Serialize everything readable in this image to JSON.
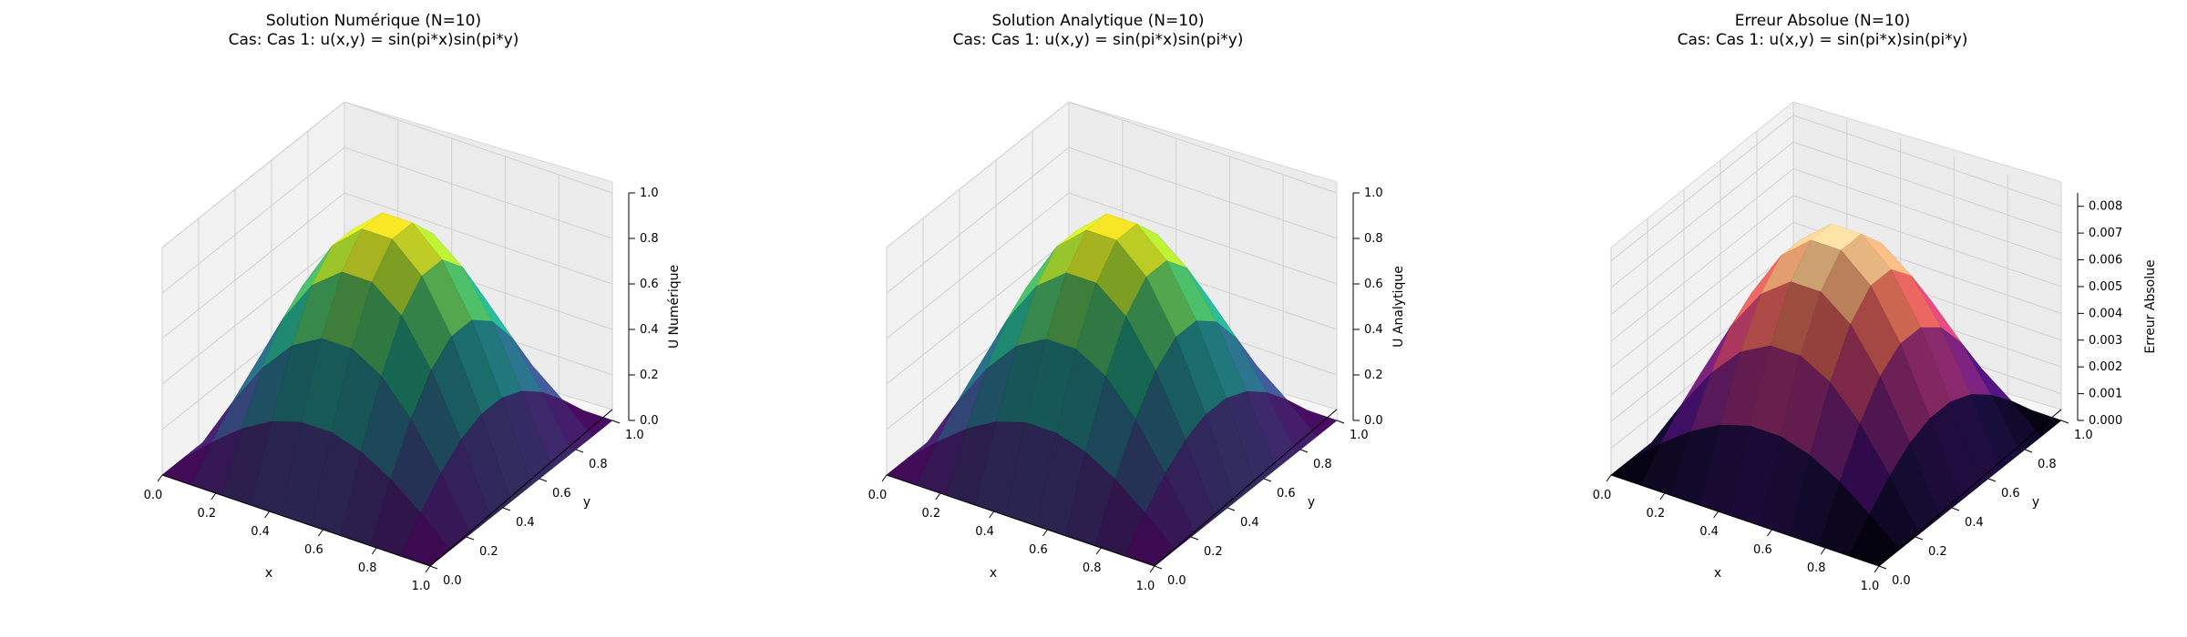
{
  "chart_data": [
    {
      "type": "surface",
      "title": "Solution Numérique (N=10)",
      "subtitle": "Cas: Cas 1: u(x,y) = sin(pi*x)sin(pi*y)",
      "xlabel": "x",
      "ylabel": "y",
      "zlabel": "U Numérique",
      "xlim": [
        0,
        1
      ],
      "ylim": [
        0,
        1
      ],
      "zlim": [
        0,
        1
      ],
      "x_ticks": [
        "0.0",
        "0.2",
        "0.4",
        "0.6",
        "0.8",
        "1.0"
      ],
      "y_ticks": [
        "0.0",
        "0.2",
        "0.4",
        "0.6",
        "0.8",
        "1.0"
      ],
      "z_ticks": [
        "0.0",
        "0.2",
        "0.4",
        "0.6",
        "0.8",
        "1.0"
      ],
      "grid": true,
      "colormap": "viridis",
      "grid_n": 10,
      "x": [
        0.0,
        0.111,
        0.222,
        0.333,
        0.444,
        0.556,
        0.667,
        0.778,
        0.889,
        1.0
      ],
      "y": [
        0.0,
        0.111,
        0.222,
        0.333,
        0.444,
        0.556,
        0.667,
        0.778,
        0.889,
        1.0
      ],
      "z": [
        [
          0,
          0,
          0,
          0,
          0,
          0,
          0,
          0,
          0,
          0
        ],
        [
          0,
          0.117,
          0.221,
          0.297,
          0.338,
          0.338,
          0.297,
          0.221,
          0.117,
          0
        ],
        [
          0,
          0.221,
          0.415,
          0.559,
          0.636,
          0.636,
          0.559,
          0.415,
          0.221,
          0
        ],
        [
          0,
          0.297,
          0.559,
          0.754,
          0.857,
          0.857,
          0.754,
          0.559,
          0.297,
          0
        ],
        [
          0,
          0.338,
          0.636,
          0.857,
          0.975,
          0.975,
          0.857,
          0.636,
          0.338,
          0
        ],
        [
          0,
          0.338,
          0.636,
          0.857,
          0.975,
          0.975,
          0.857,
          0.636,
          0.338,
          0
        ],
        [
          0,
          0.297,
          0.559,
          0.754,
          0.857,
          0.857,
          0.754,
          0.559,
          0.297,
          0
        ],
        [
          0,
          0.221,
          0.415,
          0.559,
          0.636,
          0.636,
          0.559,
          0.415,
          0.221,
          0
        ],
        [
          0,
          0.117,
          0.221,
          0.297,
          0.338,
          0.338,
          0.297,
          0.221,
          0.117,
          0
        ],
        [
          0,
          0,
          0,
          0,
          0,
          0,
          0,
          0,
          0,
          0
        ]
      ]
    },
    {
      "type": "surface",
      "title": "Solution Analytique (N=10)",
      "subtitle": "Cas: Cas 1: u(x,y) = sin(pi*x)sin(pi*y)",
      "xlabel": "x",
      "ylabel": "y",
      "zlabel": "U Analytique",
      "xlim": [
        0,
        1
      ],
      "ylim": [
        0,
        1
      ],
      "zlim": [
        0,
        1
      ],
      "x_ticks": [
        "0.0",
        "0.2",
        "0.4",
        "0.6",
        "0.8",
        "1.0"
      ],
      "y_ticks": [
        "0.0",
        "0.2",
        "0.4",
        "0.6",
        "0.8",
        "1.0"
      ],
      "z_ticks": [
        "0.0",
        "0.2",
        "0.4",
        "0.6",
        "0.8",
        "1.0"
      ],
      "grid": true,
      "colormap": "viridis",
      "grid_n": 10,
      "x": [
        0.0,
        0.111,
        0.222,
        0.333,
        0.444,
        0.556,
        0.667,
        0.778,
        0.889,
        1.0
      ],
      "y": [
        0.0,
        0.111,
        0.222,
        0.333,
        0.444,
        0.556,
        0.667,
        0.778,
        0.889,
        1.0
      ],
      "z": [
        [
          0,
          0,
          0,
          0,
          0,
          0,
          0,
          0,
          0,
          0
        ],
        [
          0,
          0.117,
          0.22,
          0.296,
          0.337,
          0.337,
          0.296,
          0.22,
          0.117,
          0
        ],
        [
          0,
          0.22,
          0.413,
          0.557,
          0.633,
          0.633,
          0.557,
          0.413,
          0.22,
          0
        ],
        [
          0,
          0.296,
          0.557,
          0.75,
          0.853,
          0.853,
          0.75,
          0.557,
          0.296,
          0
        ],
        [
          0,
          0.337,
          0.633,
          0.853,
          0.97,
          0.97,
          0.853,
          0.633,
          0.337,
          0
        ],
        [
          0,
          0.337,
          0.633,
          0.853,
          0.97,
          0.97,
          0.853,
          0.633,
          0.337,
          0
        ],
        [
          0,
          0.296,
          0.557,
          0.75,
          0.853,
          0.853,
          0.75,
          0.557,
          0.296,
          0
        ],
        [
          0,
          0.22,
          0.413,
          0.557,
          0.633,
          0.633,
          0.557,
          0.413,
          0.22,
          0
        ],
        [
          0,
          0.117,
          0.22,
          0.296,
          0.337,
          0.337,
          0.296,
          0.22,
          0.117,
          0
        ],
        [
          0,
          0,
          0,
          0,
          0,
          0,
          0,
          0,
          0,
          0
        ]
      ]
    },
    {
      "type": "surface",
      "title": "Erreur Absolue (N=10)",
      "subtitle": "Cas: Cas 1: u(x,y) = sin(pi*x)sin(pi*y)",
      "xlabel": "x",
      "ylabel": "y",
      "zlabel": "Erreur Absolue",
      "xlim": [
        0,
        1
      ],
      "ylim": [
        0,
        1
      ],
      "zlim": [
        0,
        0.0085
      ],
      "x_ticks": [
        "0.0",
        "0.2",
        "0.4",
        "0.6",
        "0.8",
        "1.0"
      ],
      "y_ticks": [
        "0.0",
        "0.2",
        "0.4",
        "0.6",
        "0.8",
        "1.0"
      ],
      "z_ticks": [
        "0.000",
        "0.001",
        "0.002",
        "0.003",
        "0.004",
        "0.005",
        "0.006",
        "0.007",
        "0.008"
      ],
      "grid": true,
      "colormap": "magma",
      "grid_n": 10,
      "x": [
        0.0,
        0.111,
        0.222,
        0.333,
        0.444,
        0.556,
        0.667,
        0.778,
        0.889,
        1.0
      ],
      "y": [
        0.0,
        0.111,
        0.222,
        0.333,
        0.444,
        0.556,
        0.667,
        0.778,
        0.889,
        1.0
      ],
      "z": [
        [
          0,
          0,
          0,
          0,
          0,
          0,
          0,
          0,
          0,
          0
        ],
        [
          0,
          0.00095,
          0.00178,
          0.0024,
          0.00273,
          0.00273,
          0.0024,
          0.00178,
          0.00095,
          0
        ],
        [
          0,
          0.00178,
          0.00335,
          0.00452,
          0.00513,
          0.00513,
          0.00452,
          0.00335,
          0.00178,
          0
        ],
        [
          0,
          0.0024,
          0.00452,
          0.00608,
          0.00692,
          0.00692,
          0.00608,
          0.00452,
          0.0024,
          0
        ],
        [
          0,
          0.00273,
          0.00513,
          0.00692,
          0.00787,
          0.00787,
          0.00692,
          0.00513,
          0.00273,
          0
        ],
        [
          0,
          0.00273,
          0.00513,
          0.00692,
          0.00787,
          0.00787,
          0.00692,
          0.00513,
          0.00273,
          0
        ],
        [
          0,
          0.0024,
          0.00452,
          0.00608,
          0.00692,
          0.00692,
          0.00608,
          0.00452,
          0.0024,
          0
        ],
        [
          0,
          0.00178,
          0.00335,
          0.00452,
          0.00513,
          0.00513,
          0.00452,
          0.00335,
          0.00178,
          0
        ],
        [
          0,
          0.00095,
          0.00178,
          0.0024,
          0.00273,
          0.00273,
          0.0024,
          0.00178,
          0.00095,
          0
        ],
        [
          0,
          0,
          0,
          0,
          0,
          0,
          0,
          0,
          0,
          0
        ]
      ]
    }
  ]
}
